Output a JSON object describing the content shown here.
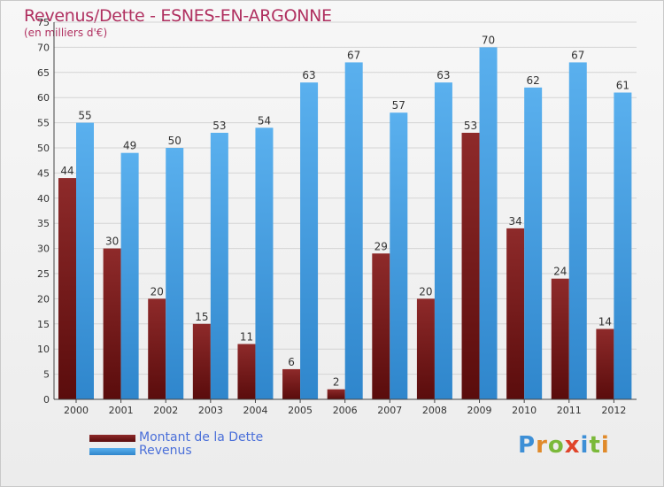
{
  "header": {
    "title": "Revenus/Dette - ESNES-EN-ARGONNE",
    "subtitle": "(en milliers d'€)"
  },
  "colors": {
    "dette": "#7a1a1a",
    "revenus": "#3f97dc",
    "title": "#b03060",
    "legend_text": "#4a6fd9"
  },
  "legend": {
    "dette_label": "Montant de la Dette",
    "revenus_label": "Revenus"
  },
  "logo": {
    "text": "Proxiti"
  },
  "chart_data": {
    "type": "bar",
    "title": "Revenus/Dette - ESNES-EN-ARGONNE",
    "ylabel": "(en milliers d'€)",
    "xlabel": "",
    "ylim": [
      0,
      75
    ],
    "yticks": [
      0,
      5,
      10,
      15,
      20,
      25,
      30,
      35,
      40,
      45,
      50,
      55,
      60,
      65,
      70,
      75
    ],
    "grid": true,
    "legend_position": "bottom-left",
    "categories": [
      "2000",
      "2001",
      "2002",
      "2003",
      "2004",
      "2005",
      "2006",
      "2007",
      "2008",
      "2009",
      "2010",
      "2011",
      "2012"
    ],
    "series": [
      {
        "name": "Montant de la Dette",
        "values": [
          44,
          30,
          20,
          15,
          11,
          6,
          2,
          29,
          20,
          53,
          34,
          24,
          14
        ]
      },
      {
        "name": "Revenus",
        "values": [
          55,
          49,
          50,
          53,
          54,
          63,
          67,
          57,
          63,
          70,
          62,
          67,
          61
        ]
      }
    ]
  }
}
